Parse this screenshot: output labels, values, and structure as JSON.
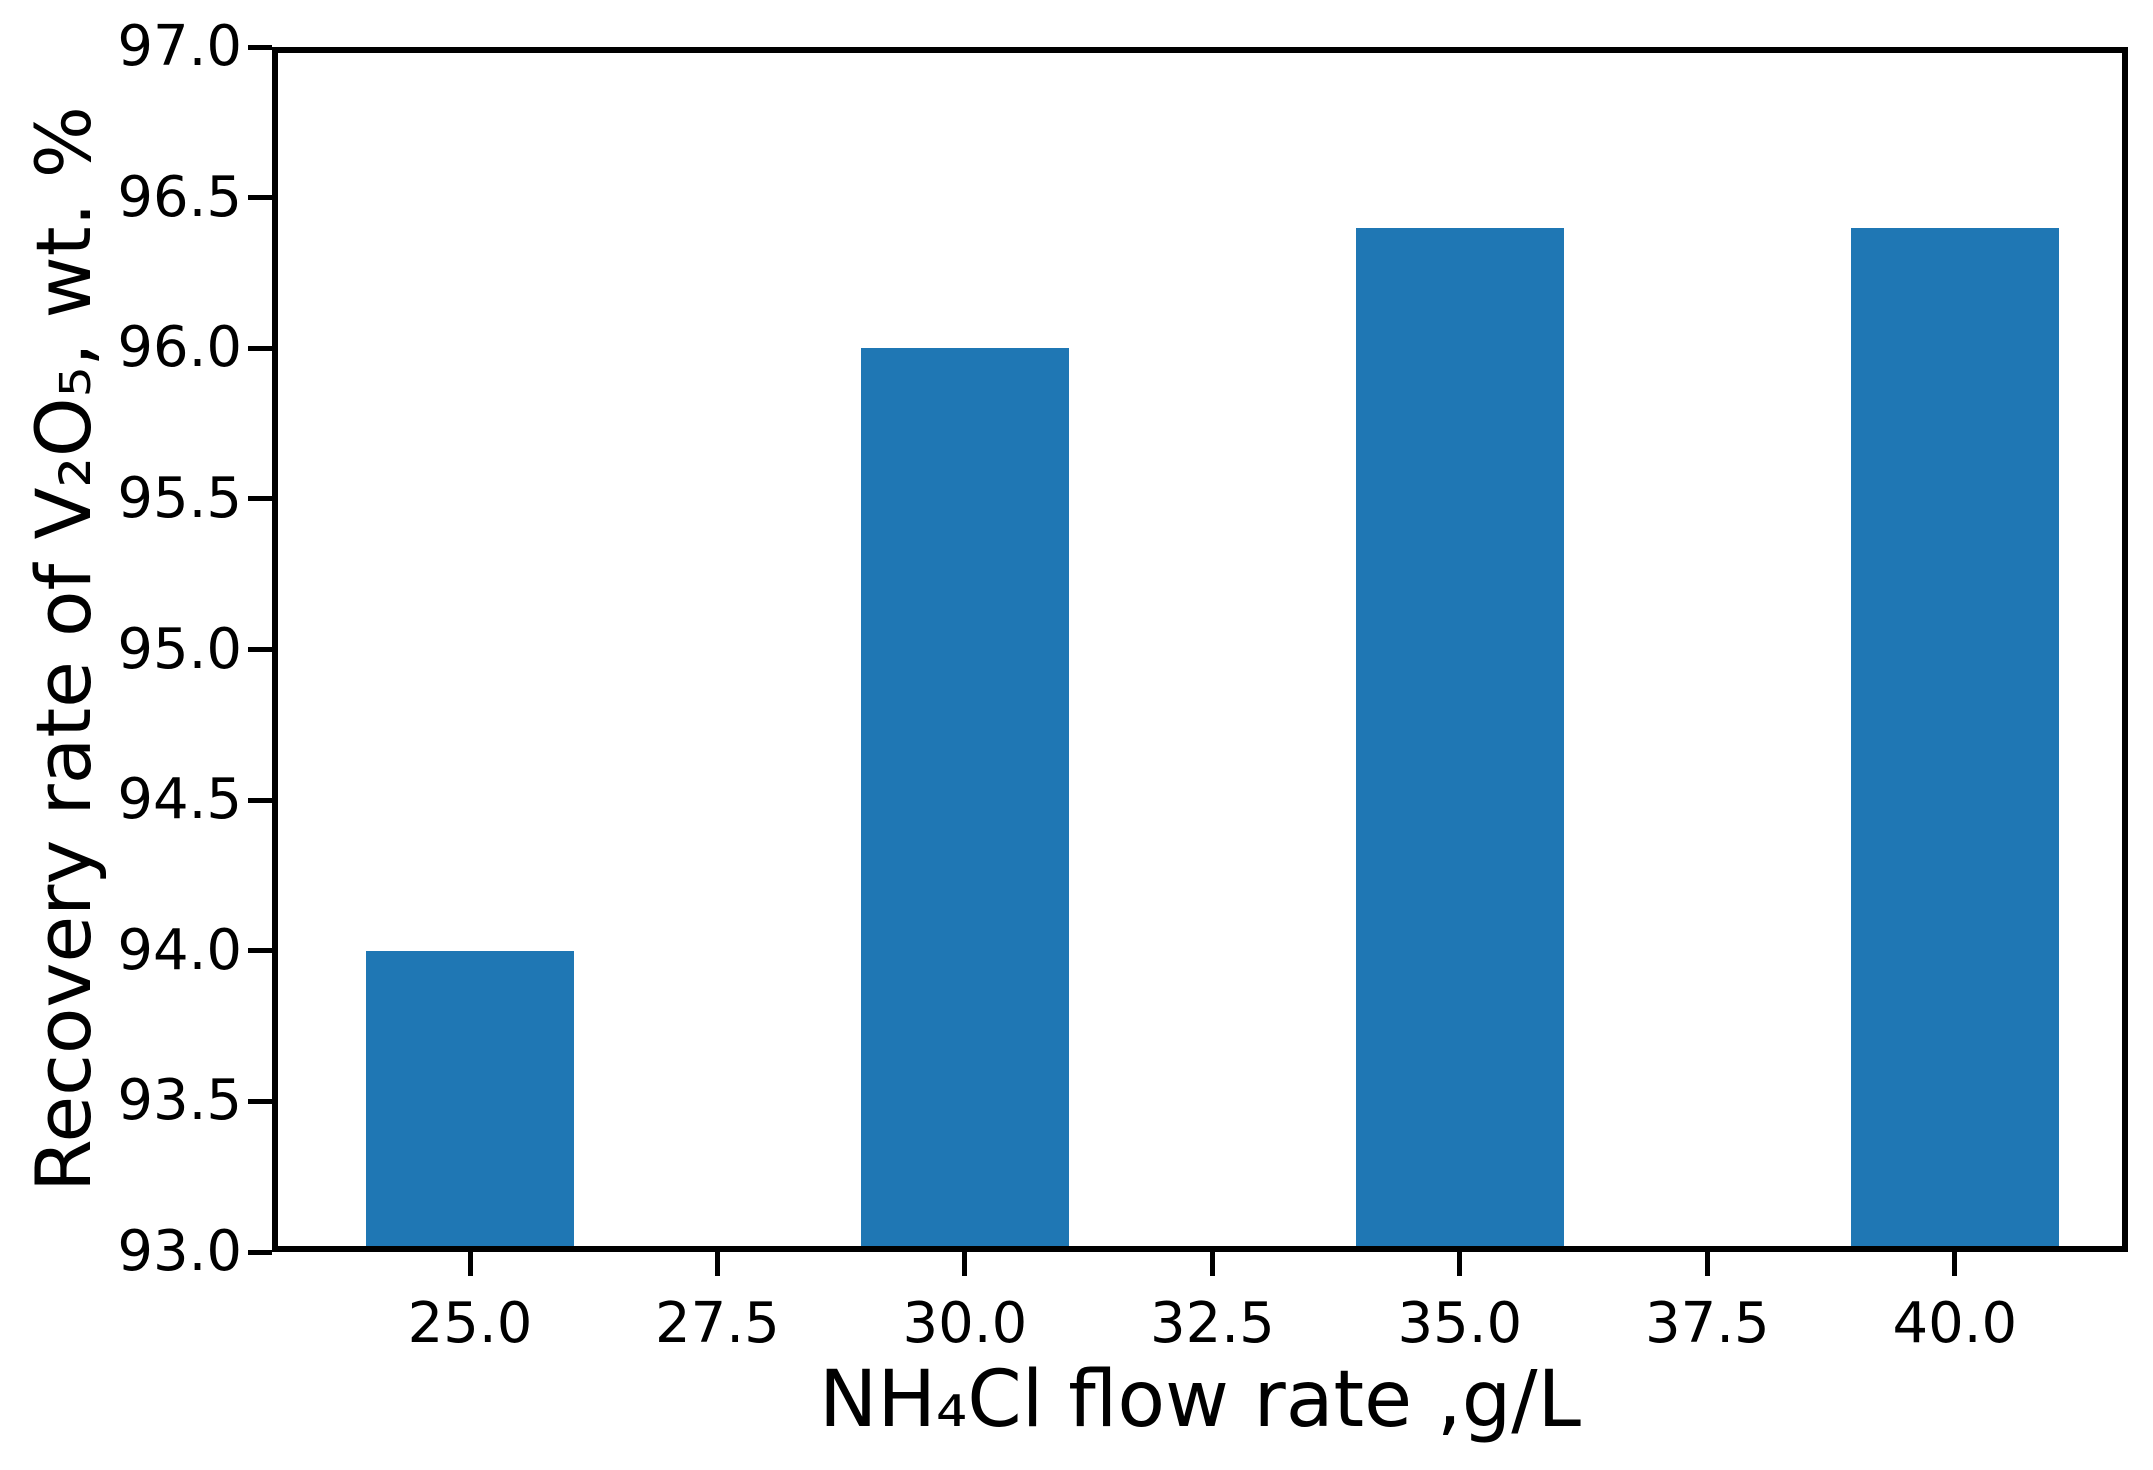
{
  "figure": {
    "background_color": "#ffffff",
    "bar_color": "#1f77b4",
    "axis_color": "#000000"
  },
  "chart_data": {
    "type": "bar",
    "title": "",
    "xlabel": "NH₄Cl flow rate ,g/L",
    "ylabel": "Recovery rate of V₂O₅, wt. %",
    "x": [
      25.0,
      30.0,
      35.0,
      40.0
    ],
    "values": [
      94.0,
      96.0,
      96.4,
      96.4
    ],
    "bar_width_units": 2.1,
    "xlim": [
      23.0,
      41.75
    ],
    "ylim": [
      93.0,
      97.0
    ],
    "x_ticks": [
      25.0,
      27.5,
      30.0,
      32.5,
      35.0,
      37.5,
      40.0
    ],
    "x_tick_labels": [
      "25.0",
      "27.5",
      "30.0",
      "32.5",
      "35.0",
      "37.5",
      "40.0"
    ],
    "y_ticks": [
      93.0,
      93.5,
      94.0,
      94.5,
      95.0,
      95.5,
      96.0,
      96.5,
      97.0
    ],
    "y_tick_labels": [
      "93.0",
      "93.5",
      "94.0",
      "94.5",
      "95.0",
      "95.5",
      "96.0",
      "96.5",
      "97.0"
    ],
    "grid": false,
    "legend_position": "none"
  }
}
